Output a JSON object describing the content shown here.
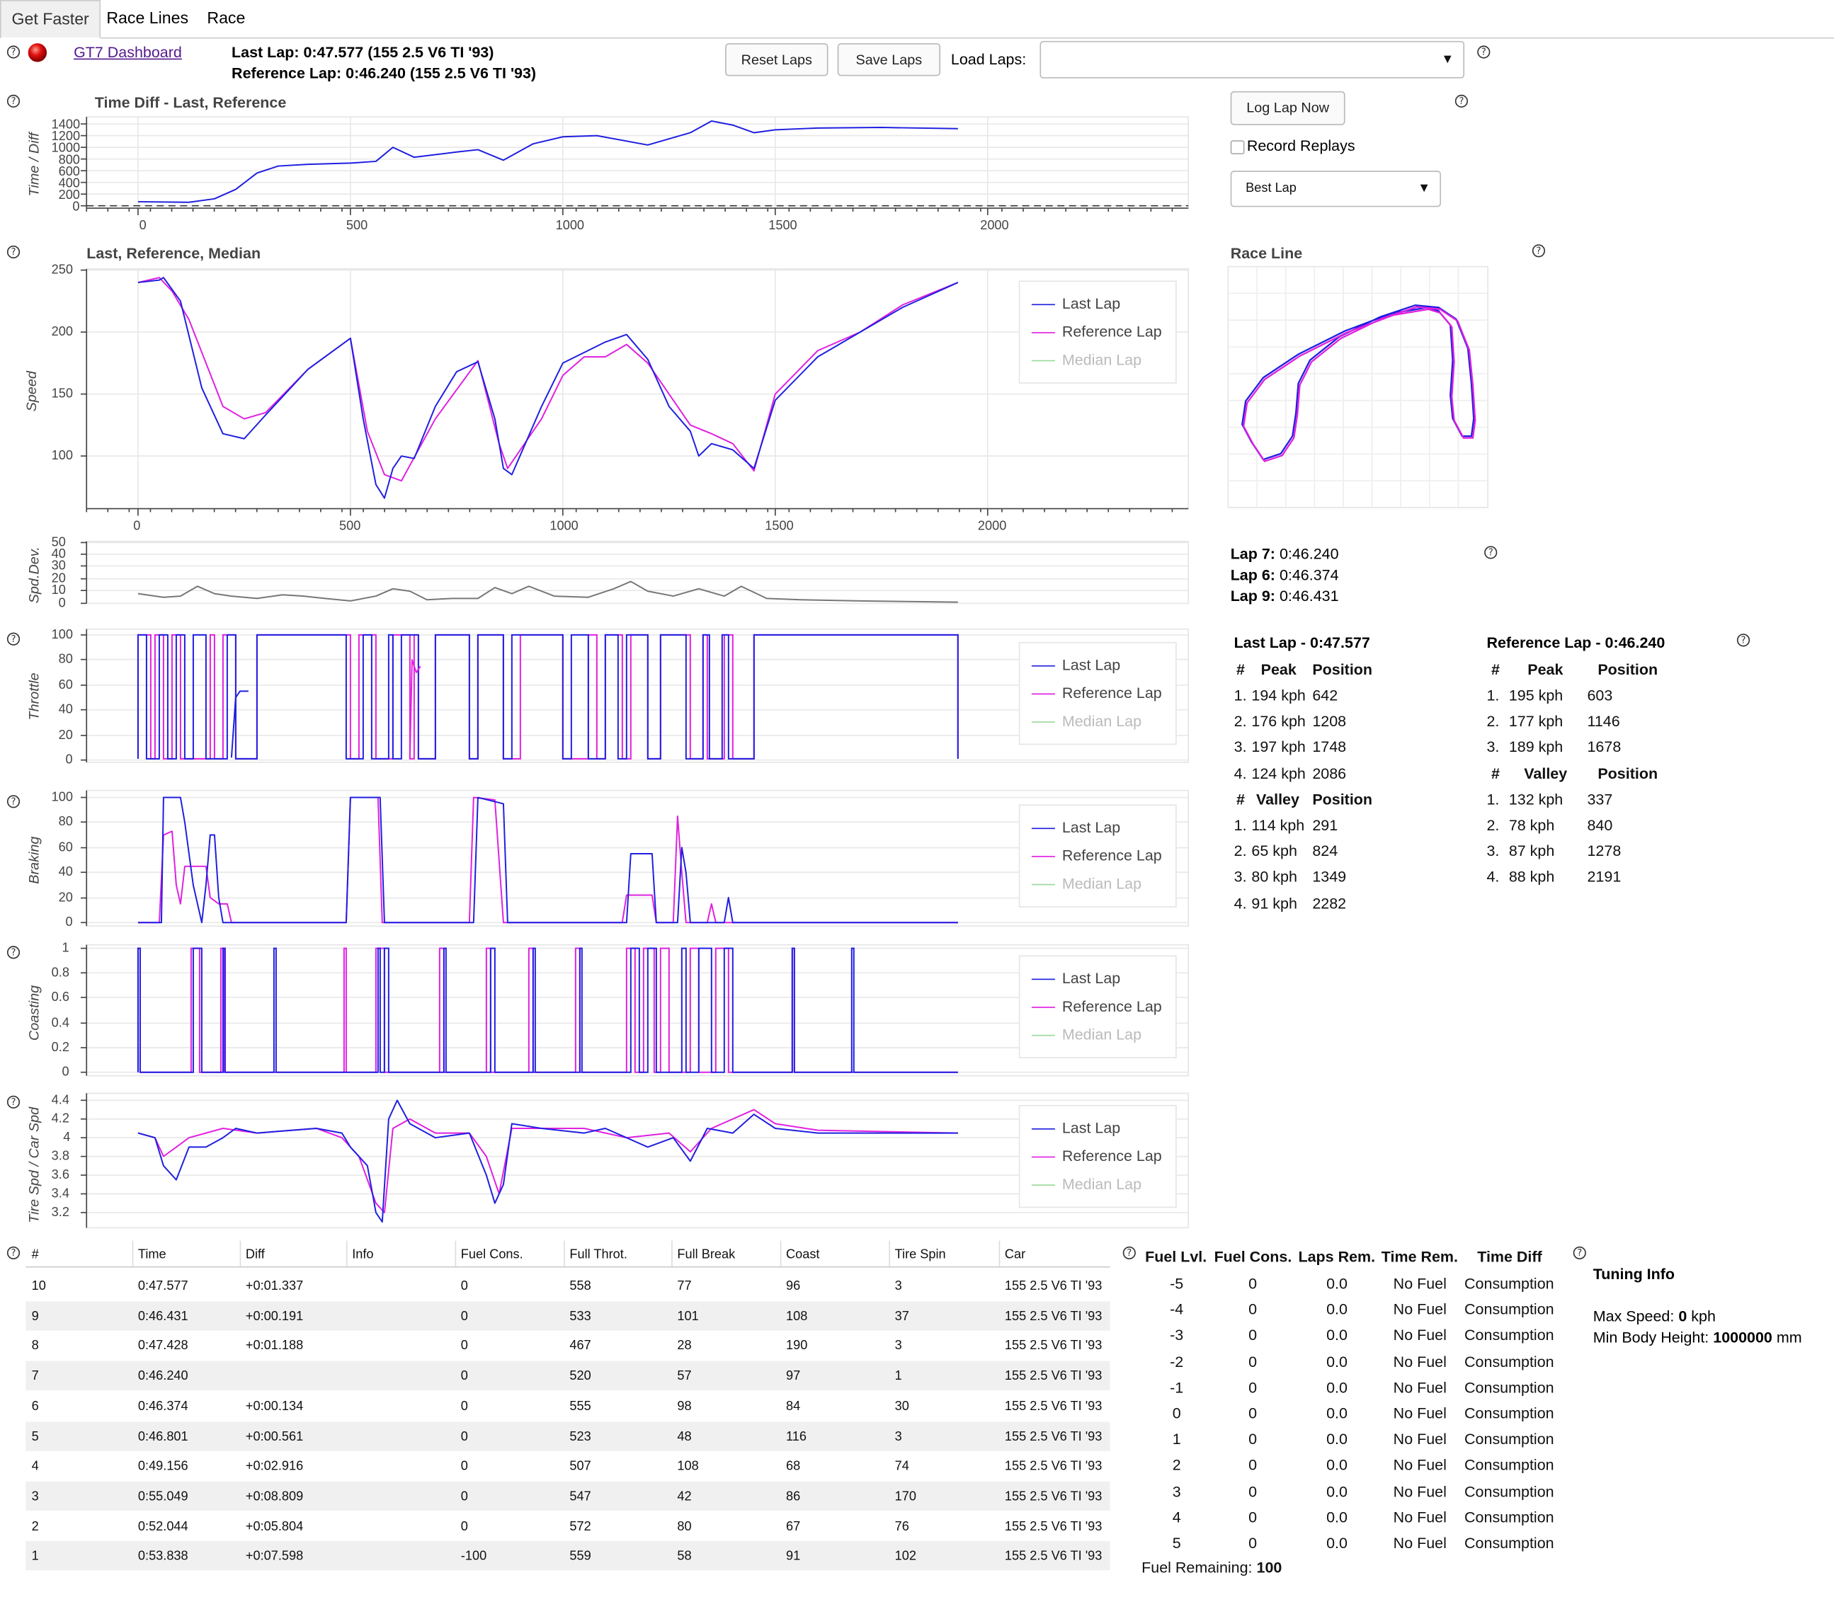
{
  "tabs": [
    "Get Faster",
    "Race Lines",
    "Race"
  ],
  "header": {
    "dashboard_link": "GT7 Dashboard",
    "last_lap": "Last Lap: 0:47.577 (155 2.5 V6 TI '93)",
    "reference_lap": "Reference Lap: 0:46.240 (155 2.5 V6 TI '93)",
    "reset_laps": "Reset Laps",
    "save_laps": "Save Laps",
    "load_laps_label": "Load Laps:",
    "load_laps_value": ""
  },
  "controls": {
    "log_lap_now": "Log Lap Now",
    "record_replays": "Record Replays",
    "record_replays_checked": false,
    "ref_select": "Best Lap"
  },
  "colors": {
    "last_lap": "#1f1fe0",
    "reference_lap": "#e020e0",
    "median_lap": "#9ad99a",
    "deviation": "#777777"
  },
  "legend": {
    "last": "Last Lap",
    "reference": "Reference Lap",
    "median": "Median Lap"
  },
  "plots": {
    "time_diff": {
      "title": "Time Diff - Last, Reference",
      "ylabel": "Time / Diff",
      "yticks": [
        "1400",
        "1200",
        "1000",
        "800",
        "600",
        "400",
        "200",
        "0"
      ],
      "xticks": [
        "0",
        "500",
        "1000",
        "1500",
        "2000"
      ]
    },
    "speed": {
      "title": "Last, Reference, Median",
      "ylabel": "Speed",
      "yticks": [
        "250",
        "200",
        "150",
        "100"
      ],
      "xticks": [
        "0",
        "500",
        "1000",
        "1500",
        "2000"
      ]
    },
    "deviation": {
      "ylabel": "Spd.Dev.",
      "yticks": [
        "50",
        "40",
        "30",
        "20",
        "10",
        "0"
      ]
    },
    "throttle": {
      "ylabel": "Throttle",
      "yticks": [
        "100",
        "80",
        "60",
        "40",
        "20",
        "0"
      ]
    },
    "braking": {
      "ylabel": "Braking",
      "yticks": [
        "100",
        "80",
        "60",
        "40",
        "20",
        "0"
      ]
    },
    "coasting": {
      "ylabel": "Coasting",
      "yticks": [
        "1",
        "0.8",
        "0.6",
        "0.4",
        "0.2",
        "0"
      ]
    },
    "tire": {
      "ylabel": "Tire Spd / Car Spd",
      "yticks": [
        "4.4",
        "4.2",
        "4",
        "3.8",
        "3.6",
        "3.4",
        "3.2"
      ]
    }
  },
  "race_line": {
    "title": "Race Line"
  },
  "best_laps": [
    {
      "label": "Lap 7:",
      "time": "0:46.240"
    },
    {
      "label": "Lap 6:",
      "time": "0:46.374"
    },
    {
      "label": "Lap 9:",
      "time": "0:46.431"
    }
  ],
  "peaks_last": {
    "title": "Last Lap - 0:47.577",
    "peak_header": [
      "#",
      "Peak",
      "Position"
    ],
    "peaks": [
      [
        "1.",
        "194 kph",
        "642"
      ],
      [
        "2.",
        "176 kph",
        "1208"
      ],
      [
        "3.",
        "197 kph",
        "1748"
      ],
      [
        "4.",
        "124 kph",
        "2086"
      ]
    ],
    "valley_header": [
      "#",
      "Valley",
      "Position"
    ],
    "valleys": [
      [
        "1.",
        "114 kph",
        "291"
      ],
      [
        "2.",
        "65 kph",
        "824"
      ],
      [
        "3.",
        "80 kph",
        "1349"
      ],
      [
        "4.",
        "91 kph",
        "2282"
      ]
    ]
  },
  "peaks_ref": {
    "title": "Reference Lap - 0:46.240",
    "peak_header": [
      "#",
      "Peak",
      "Position"
    ],
    "peaks": [
      [
        "1.",
        "195 kph",
        "603"
      ],
      [
        "2.",
        "177 kph",
        "1146"
      ],
      [
        "3.",
        "189 kph",
        "1678"
      ]
    ],
    "valley_header": [
      "#",
      "Valley",
      "Position"
    ],
    "valleys": [
      [
        "1.",
        "132 kph",
        "337"
      ],
      [
        "2.",
        "78 kph",
        "840"
      ],
      [
        "3.",
        "87 kph",
        "1278"
      ],
      [
        "4.",
        "88 kph",
        "2191"
      ]
    ]
  },
  "laps_table": {
    "headers": [
      "#",
      "Time",
      "Diff",
      "Info",
      "Fuel Cons.",
      "Full Throt.",
      "Full Break",
      "Coast",
      "Tire Spin",
      "Car"
    ],
    "rows": [
      [
        "10",
        "0:47.577",
        "+0:01.337",
        "",
        "0",
        "558",
        "77",
        "96",
        "3",
        "155 2.5 V6 TI '93"
      ],
      [
        "9",
        "0:46.431",
        "+0:00.191",
        "",
        "0",
        "533",
        "101",
        "108",
        "37",
        "155 2.5 V6 TI '93"
      ],
      [
        "8",
        "0:47.428",
        "+0:01.188",
        "",
        "0",
        "467",
        "28",
        "190",
        "3",
        "155 2.5 V6 TI '93"
      ],
      [
        "7",
        "0:46.240",
        "",
        "",
        "0",
        "520",
        "57",
        "97",
        "1",
        "155 2.5 V6 TI '93"
      ],
      [
        "6",
        "0:46.374",
        "+0:00.134",
        "",
        "0",
        "555",
        "98",
        "84",
        "30",
        "155 2.5 V6 TI '93"
      ],
      [
        "5",
        "0:46.801",
        "+0:00.561",
        "",
        "0",
        "523",
        "48",
        "116",
        "3",
        "155 2.5 V6 TI '93"
      ],
      [
        "4",
        "0:49.156",
        "+0:02.916",
        "",
        "0",
        "507",
        "108",
        "68",
        "74",
        "155 2.5 V6 TI '93"
      ],
      [
        "3",
        "0:55.049",
        "+0:08.809",
        "",
        "0",
        "547",
        "42",
        "86",
        "170",
        "155 2.5 V6 TI '93"
      ],
      [
        "2",
        "0:52.044",
        "+0:05.804",
        "",
        "0",
        "572",
        "80",
        "67",
        "76",
        "155 2.5 V6 TI '93"
      ],
      [
        "1",
        "0:53.838",
        "+0:07.598",
        "",
        "-100",
        "559",
        "58",
        "91",
        "102",
        "155 2.5 V6 TI '93"
      ]
    ]
  },
  "fuel_table": {
    "headers": [
      "Fuel Lvl.",
      "Fuel Cons.",
      "Laps Rem.",
      "Time Rem.",
      "Time Diff"
    ],
    "rows": [
      [
        "-5",
        "0",
        "0.0",
        "No Fuel",
        "Consumption"
      ],
      [
        "-4",
        "0",
        "0.0",
        "No Fuel",
        "Consumption"
      ],
      [
        "-3",
        "0",
        "0.0",
        "No Fuel",
        "Consumption"
      ],
      [
        "-2",
        "0",
        "0.0",
        "No Fuel",
        "Consumption"
      ],
      [
        "-1",
        "0",
        "0.0",
        "No Fuel",
        "Consumption"
      ],
      [
        "0",
        "0",
        "0.0",
        "No Fuel",
        "Consumption"
      ],
      [
        "1",
        "0",
        "0.0",
        "No Fuel",
        "Consumption"
      ],
      [
        "2",
        "0",
        "0.0",
        "No Fuel",
        "Consumption"
      ],
      [
        "3",
        "0",
        "0.0",
        "No Fuel",
        "Consumption"
      ],
      [
        "4",
        "0",
        "0.0",
        "No Fuel",
        "Consumption"
      ],
      [
        "5",
        "0",
        "0.0",
        "No Fuel",
        "Consumption"
      ]
    ],
    "fuel_remaining_label": "Fuel Remaining:",
    "fuel_remaining_value": "100"
  },
  "tuning": {
    "title": "Tuning Info",
    "max_speed_label": "Max Speed:",
    "max_speed_value": "0",
    "max_speed_unit": "kph",
    "min_height_label": "Min Body Height:",
    "min_height_value": "1000000",
    "min_height_unit": "mm"
  }
}
